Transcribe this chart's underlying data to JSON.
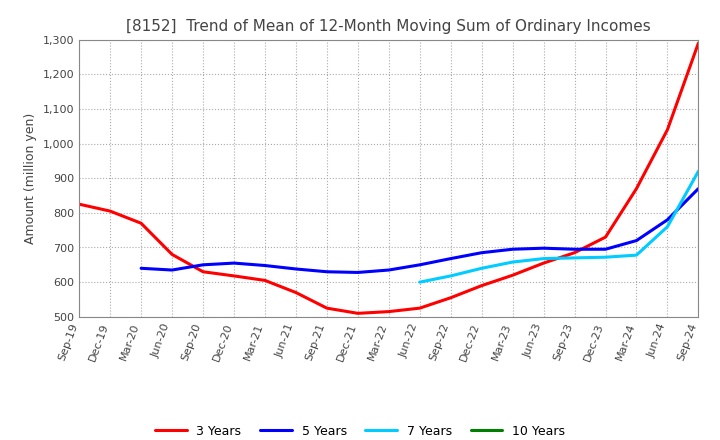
{
  "title": "[8152]  Trend of Mean of 12-Month Moving Sum of Ordinary Incomes",
  "ylabel": "Amount (million yen)",
  "ylim": [
    500,
    1300
  ],
  "yticks": [
    500,
    600,
    700,
    800,
    900,
    1000,
    1100,
    1200,
    1300
  ],
  "x_labels": [
    "Sep-19",
    "Dec-19",
    "Mar-20",
    "Jun-20",
    "Sep-20",
    "Dec-20",
    "Mar-21",
    "Jun-21",
    "Sep-21",
    "Dec-21",
    "Mar-22",
    "Jun-22",
    "Sep-22",
    "Dec-22",
    "Mar-23",
    "Jun-23",
    "Sep-23",
    "Dec-23",
    "Mar-24",
    "Jun-24",
    "Sep-24"
  ],
  "lines": {
    "3 Years": {
      "color": "#ff0000",
      "data": [
        825,
        805,
        770,
        680,
        630,
        618,
        605,
        570,
        525,
        510,
        515,
        525,
        555,
        590,
        620,
        655,
        685,
        730,
        870,
        1040,
        1290
      ]
    },
    "5 Years": {
      "color": "#0000ff",
      "data": [
        null,
        null,
        640,
        635,
        650,
        655,
        648,
        638,
        630,
        628,
        635,
        650,
        668,
        685,
        695,
        698,
        695,
        695,
        720,
        780,
        870
      ]
    },
    "7 Years": {
      "color": "#00ccff",
      "data": [
        null,
        null,
        null,
        null,
        null,
        null,
        null,
        null,
        null,
        null,
        null,
        600,
        618,
        640,
        658,
        668,
        670,
        672,
        678,
        760,
        920
      ]
    },
    "10 Years": {
      "color": "#008000",
      "data": [
        null,
        null,
        null,
        null,
        null,
        null,
        null,
        null,
        null,
        null,
        null,
        null,
        null,
        null,
        null,
        null,
        null,
        null,
        null,
        null,
        null
      ]
    }
  },
  "legend_order": [
    "3 Years",
    "5 Years",
    "7 Years",
    "10 Years"
  ],
  "background_color": "#ffffff",
  "grid_color": "#aaaaaa",
  "title_fontsize": 11,
  "label_fontsize": 9,
  "tick_fontsize": 8
}
